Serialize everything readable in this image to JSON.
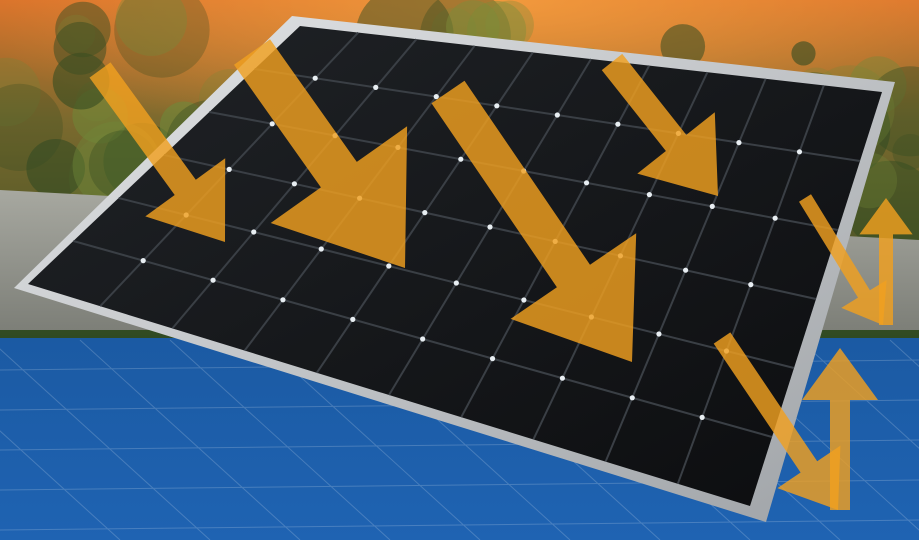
{
  "scene": {
    "subject": "solar-panel",
    "colors": {
      "sky_top": "#d9712a",
      "foliage_dark": "#2f4a22",
      "foliage_light": "#6f8a3a",
      "roof": "#8f9189",
      "blue_band": "#1f5fa8",
      "blue_band_light": "#3f86cc",
      "panel_frame": "#c9cbcd",
      "panel_cell": "#111315",
      "panel_grid": "#3a3f45",
      "arrow_orange": "#f0a020"
    },
    "panel": {
      "rows": 6,
      "cols": 10
    },
    "arrows": {
      "incoming_count": 4,
      "reflected_count": 2
    }
  }
}
